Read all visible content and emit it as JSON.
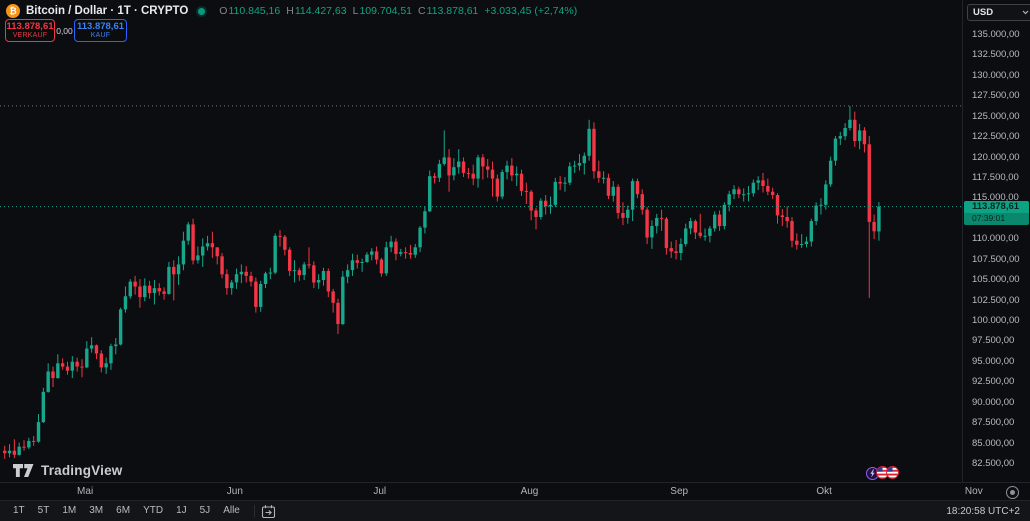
{
  "header": {
    "symbol": "Bitcoin / Dollar · 1T · CRYPTO",
    "market_status": "open",
    "ohlc": {
      "o_label": "O",
      "o_value": "110.845,16",
      "h_label": "H",
      "h_value": "114.427,63",
      "l_label": "L",
      "l_value": "109.704,51",
      "c_label": "C",
      "c_value": "113.878,61",
      "change": "+3.033,45 (+2,74%)"
    },
    "sell_price": "113.878,61",
    "sell_label": "VERKAUF",
    "spread": "0,00",
    "buy_price": "113.878,61",
    "buy_label": "KAUF"
  },
  "watermark": {
    "text": "TradingView"
  },
  "price_axis": {
    "currency_button": "USD",
    "last_price_label": "113.878,61",
    "countdown": "07:39:01",
    "ticks": [
      {
        "v": 135000,
        "label": "135.000,00"
      },
      {
        "v": 132500,
        "label": "132.500,00"
      },
      {
        "v": 130000,
        "label": "130.000,00"
      },
      {
        "v": 127500,
        "label": "127.500,00"
      },
      {
        "v": 125000,
        "label": "125.000,00"
      },
      {
        "v": 122500,
        "label": "122.500,00"
      },
      {
        "v": 120000,
        "label": "120.000,00"
      },
      {
        "v": 117500,
        "label": "117.500,00"
      },
      {
        "v": 115000,
        "label": "115.000,00"
      },
      {
        "v": 110000,
        "label": "110.000,00"
      },
      {
        "v": 107500,
        "label": "107.500,00"
      },
      {
        "v": 105000,
        "label": "105.000,00"
      },
      {
        "v": 102500,
        "label": "102.500,00"
      },
      {
        "v": 100000,
        "label": "100.000,00"
      },
      {
        "v": 97500,
        "label": "97.500,00"
      },
      {
        "v": 95000,
        "label": "95.000,00"
      },
      {
        "v": 92500,
        "label": "92.500,00"
      },
      {
        "v": 90000,
        "label": "90.000,00"
      },
      {
        "v": 87500,
        "label": "87.500,00"
      },
      {
        "v": 85000,
        "label": "85.000,00"
      },
      {
        "v": 82500,
        "label": "82.500,00"
      }
    ]
  },
  "events": [
    {
      "icon": "lightning-event"
    },
    {
      "icon": "us-flag-event"
    },
    {
      "icon": "us-flag-event"
    }
  ],
  "bottom_bar": {
    "ranges": [
      "1T",
      "5T",
      "1M",
      "3M",
      "6M",
      "YTD",
      "1J",
      "5J",
      "Alle"
    ],
    "clock": "18:20:58 UTC+2"
  },
  "colors": {
    "up": "#17a78c",
    "down": "#f23645",
    "buy_accent": "#2962ff",
    "sell_accent": "#f23645",
    "badge_bg": "#0da284",
    "prior_high_line": "#73767e",
    "background": "#0c0d10",
    "axis_text": "#b9bcc3"
  },
  "chart_data": {
    "type": "candlestick",
    "title": "Bitcoin / Dollar · 1T · CRYPTO",
    "interval": "1T",
    "exchange": "CRYPTO",
    "currency": "USD",
    "last_price": 113878.61,
    "countdown": "07:39:01",
    "prior_high_line": 126200,
    "current_candle": {
      "open": 110845.16,
      "high": 114427.63,
      "low": 109704.51,
      "close": 113878.61,
      "change_abs": "+3.033,45",
      "change_pct": "+2,74%"
    },
    "y_axis": {
      "side": "right",
      "visible_range": [
        82500,
        135000
      ],
      "tick_step": 2500
    },
    "x_axis": {
      "months": [
        {
          "label": "Mai",
          "index": 17
        },
        {
          "label": "Jun",
          "index": 48
        },
        {
          "label": "Jul",
          "index": 78
        },
        {
          "label": "Aug",
          "index": 109
        },
        {
          "label": "Sep",
          "index": 140
        },
        {
          "label": "Okt",
          "index": 170
        },
        {
          "label": "Nov",
          "index": 201
        }
      ]
    },
    "candles_ohlc": [
      [
        84000,
        84600,
        83000,
        83700
      ],
      [
        83700,
        84800,
        83200,
        84000
      ],
      [
        84000,
        85400,
        83100,
        83500
      ],
      [
        83500,
        85000,
        83400,
        84500
      ],
      [
        84500,
        85300,
        84000,
        84400
      ],
      [
        84400,
        85600,
        84200,
        85200
      ],
      [
        85200,
        85800,
        84600,
        85100
      ],
      [
        85100,
        88500,
        85000,
        87500
      ],
      [
        87500,
        91700,
        87400,
        91200
      ],
      [
        91200,
        94700,
        91100,
        93700
      ],
      [
        93700,
        94300,
        91800,
        92900
      ],
      [
        92900,
        95800,
        92800,
        94700
      ],
      [
        94700,
        95300,
        93900,
        94300
      ],
      [
        94300,
        94900,
        93300,
        93800
      ],
      [
        93800,
        95600,
        92900,
        94900
      ],
      [
        94900,
        95400,
        93700,
        94300
      ],
      [
        94300,
        95200,
        93000,
        94200
      ],
      [
        94200,
        97400,
        94100,
        96500
      ],
      [
        96500,
        97900,
        96000,
        96900
      ],
      [
        96900,
        97000,
        95200,
        95900
      ],
      [
        95900,
        96300,
        93600,
        94200
      ],
      [
        94200,
        95400,
        93400,
        94700
      ],
      [
        94700,
        97100,
        93900,
        96800
      ],
      [
        96800,
        97800,
        95800,
        97000
      ],
      [
        97000,
        101500,
        96900,
        101300
      ],
      [
        101300,
        104100,
        100900,
        102900
      ],
      [
        102900,
        105000,
        102600,
        104700
      ],
      [
        104700,
        105400,
        103100,
        104100
      ],
      [
        104100,
        105000,
        101500,
        102800
      ],
      [
        102800,
        105100,
        102300,
        104200
      ],
      [
        104200,
        104800,
        102600,
        103300
      ],
      [
        103300,
        104900,
        101900,
        103900
      ],
      [
        103900,
        104500,
        103000,
        103500
      ],
      [
        103500,
        104000,
        102500,
        103200
      ],
      [
        103200,
        107100,
        103100,
        106500
      ],
      [
        106500,
        107300,
        102400,
        105600
      ],
      [
        105600,
        107800,
        104300,
        106800
      ],
      [
        106800,
        110800,
        106100,
        109700
      ],
      [
        109700,
        112000,
        109200,
        111700
      ],
      [
        111700,
        112400,
        106800,
        107300
      ],
      [
        107300,
        109000,
        106900,
        107900
      ],
      [
        107900,
        110000,
        106500,
        109000
      ],
      [
        109000,
        110300,
        108500,
        109400
      ],
      [
        109400,
        110800,
        107600,
        108900
      ],
      [
        108900,
        108900,
        106800,
        107800
      ],
      [
        107800,
        108200,
        105100,
        105600
      ],
      [
        105600,
        106200,
        103100,
        103900
      ],
      [
        103900,
        104900,
        103100,
        104600
      ],
      [
        104600,
        106300,
        103800,
        105600
      ],
      [
        105600,
        106800,
        104500,
        105900
      ],
      [
        105900,
        106600,
        104600,
        105400
      ],
      [
        105400,
        105900,
        104100,
        104700
      ],
      [
        104700,
        105200,
        100900,
        101600
      ],
      [
        101600,
        104800,
        101000,
        104400
      ],
      [
        104400,
        105900,
        103900,
        105700
      ],
      [
        105700,
        106400,
        105000,
        105800
      ],
      [
        105800,
        110600,
        105600,
        110300
      ],
      [
        110300,
        111000,
        109000,
        110200
      ],
      [
        110200,
        110400,
        107900,
        108600
      ],
      [
        108600,
        108900,
        105400,
        106000
      ],
      [
        106000,
        107300,
        104600,
        106100
      ],
      [
        106100,
        106400,
        104800,
        105500
      ],
      [
        105500,
        107100,
        104900,
        106800
      ],
      [
        106800,
        108900,
        106300,
        106700
      ],
      [
        106700,
        107200,
        103900,
        104600
      ],
      [
        104600,
        105600,
        103800,
        104900
      ],
      [
        104900,
        106400,
        104200,
        106000
      ],
      [
        106000,
        106300,
        102800,
        103500
      ],
      [
        103500,
        103800,
        100900,
        102100
      ],
      [
        102100,
        102600,
        98300,
        99500
      ],
      [
        99500,
        106000,
        99400,
        105300
      ],
      [
        105300,
        106800,
        104500,
        106100
      ],
      [
        106100,
        108100,
        105400,
        107300
      ],
      [
        107300,
        108000,
        106300,
        107000
      ],
      [
        107000,
        107500,
        105900,
        107100
      ],
      [
        107100,
        108300,
        107000,
        108000
      ],
      [
        108000,
        108800,
        107300,
        108400
      ],
      [
        108400,
        109000,
        106800,
        107400
      ],
      [
        107400,
        107600,
        105300,
        105700
      ],
      [
        105700,
        109600,
        105400,
        108900
      ],
      [
        108900,
        110300,
        108300,
        109600
      ],
      [
        109600,
        110000,
        107300,
        108100
      ],
      [
        108100,
        108700,
        107800,
        108300
      ],
      [
        108300,
        108900,
        107500,
        108200
      ],
      [
        108200,
        109200,
        107500,
        108000
      ],
      [
        108000,
        109300,
        107600,
        108900
      ],
      [
        108900,
        111500,
        108300,
        111300
      ],
      [
        111300,
        113900,
        110600,
        113300
      ],
      [
        113300,
        118300,
        113200,
        117600
      ],
      [
        117600,
        118000,
        116700,
        117400
      ],
      [
        117400,
        119600,
        116900,
        119100
      ],
      [
        119100,
        123200,
        118900,
        119900
      ],
      [
        119900,
        120900,
        115700,
        117700
      ],
      [
        117700,
        119800,
        117100,
        118700
      ],
      [
        118700,
        120900,
        117900,
        119400
      ],
      [
        119400,
        119900,
        117500,
        118000
      ],
      [
        118000,
        118600,
        117300,
        117900
      ],
      [
        117900,
        119000,
        116500,
        117300
      ],
      [
        117300,
        120200,
        116200,
        119900
      ],
      [
        119900,
        120300,
        117200,
        118800
      ],
      [
        118800,
        119700,
        117400,
        118400
      ],
      [
        118400,
        119400,
        115100,
        117300
      ],
      [
        117300,
        117800,
        114500,
        115100
      ],
      [
        115100,
        118400,
        114800,
        118100
      ],
      [
        118100,
        119500,
        117200,
        118900
      ],
      [
        118900,
        119800,
        117000,
        117700
      ],
      [
        117700,
        118800,
        116400,
        117900
      ],
      [
        117900,
        118400,
        115200,
        115800
      ],
      [
        115800,
        116800,
        114200,
        115700
      ],
      [
        115700,
        115900,
        112200,
        113400
      ],
      [
        113400,
        113700,
        111100,
        112600
      ],
      [
        112600,
        114900,
        112300,
        114600
      ],
      [
        114600,
        115300,
        112900,
        113900
      ],
      [
        113900,
        115100,
        113000,
        114100
      ],
      [
        114100,
        117400,
        113800,
        116900
      ],
      [
        116900,
        117600,
        115900,
        116700
      ],
      [
        116700,
        117500,
        115700,
        116800
      ],
      [
        116800,
        119300,
        116500,
        118800
      ],
      [
        118800,
        119500,
        118000,
        118900
      ],
      [
        118900,
        120300,
        118300,
        119200
      ],
      [
        119200,
        120500,
        117800,
        120100
      ],
      [
        120100,
        124500,
        119500,
        123400
      ],
      [
        123400,
        124200,
        117300,
        118200
      ],
      [
        118200,
        119500,
        116800,
        117400
      ],
      [
        117400,
        118200,
        116700,
        117400
      ],
      [
        117400,
        117900,
        114800,
        115200
      ],
      [
        115200,
        117000,
        114500,
        116300
      ],
      [
        116300,
        116600,
        112400,
        113100
      ],
      [
        113100,
        114400,
        111600,
        112500
      ],
      [
        112500,
        114000,
        111800,
        113500
      ],
      [
        113500,
        117300,
        112100,
        117000
      ],
      [
        117000,
        117300,
        114900,
        115400
      ],
      [
        115400,
        116000,
        112900,
        113500
      ],
      [
        113500,
        113800,
        109300,
        110100
      ],
      [
        110100,
        112200,
        108700,
        111500
      ],
      [
        111500,
        113000,
        110600,
        112500
      ],
      [
        112500,
        113500,
        110900,
        112400
      ],
      [
        112400,
        112600,
        108000,
        108800
      ],
      [
        108800,
        109600,
        107600,
        108400
      ],
      [
        108400,
        109800,
        107400,
        108200
      ],
      [
        108200,
        110000,
        107300,
        109300
      ],
      [
        109300,
        111800,
        109000,
        111200
      ],
      [
        111200,
        112500,
        110500,
        112100
      ],
      [
        112100,
        112300,
        109900,
        110700
      ],
      [
        110700,
        113000,
        110000,
        110300
      ],
      [
        110300,
        111200,
        109700,
        110300
      ],
      [
        110300,
        111500,
        109500,
        111200
      ],
      [
        111200,
        113300,
        110800,
        112900
      ],
      [
        112900,
        113400,
        110900,
        111500
      ],
      [
        111500,
        114400,
        111100,
        114100
      ],
      [
        114100,
        115800,
        113300,
        115400
      ],
      [
        115400,
        116500,
        114800,
        116000
      ],
      [
        116000,
        116300,
        114900,
        115400
      ],
      [
        115400,
        116100,
        114500,
        115400
      ],
      [
        115400,
        116400,
        114500,
        115500
      ],
      [
        115500,
        117200,
        115100,
        116800
      ],
      [
        116800,
        117600,
        115900,
        117100
      ],
      [
        117100,
        118000,
        115600,
        116400
      ],
      [
        116400,
        117300,
        115300,
        115700
      ],
      [
        115700,
        116200,
        114800,
        115300
      ],
      [
        115300,
        115500,
        111800,
        112800
      ],
      [
        112800,
        113600,
        111500,
        112600
      ],
      [
        112600,
        113900,
        111300,
        112100
      ],
      [
        112100,
        112600,
        108900,
        109700
      ],
      [
        109700,
        110600,
        108600,
        109200
      ],
      [
        109200,
        110500,
        108800,
        109300
      ],
      [
        109300,
        110200,
        108900,
        109600
      ],
      [
        109600,
        112400,
        109000,
        112100
      ],
      [
        112100,
        114400,
        111600,
        114000
      ],
      [
        114000,
        114900,
        112900,
        114100
      ],
      [
        114100,
        117100,
        113500,
        116600
      ],
      [
        116600,
        120000,
        116300,
        119500
      ],
      [
        119500,
        122500,
        118900,
        122200
      ],
      [
        122200,
        123000,
        121400,
        122500
      ],
      [
        122500,
        124100,
        122000,
        123500
      ],
      [
        123500,
        126200,
        123200,
        124500
      ],
      [
        124500,
        125500,
        121200,
        121900
      ],
      [
        121900,
        124000,
        120900,
        123200
      ],
      [
        123200,
        123600,
        120500,
        121500
      ],
      [
        121500,
        122500,
        102700,
        112000
      ],
      [
        112000,
        112900,
        109900,
        110845.16
      ],
      [
        110845.16,
        114427.63,
        109704.51,
        113878.61
      ]
    ]
  }
}
